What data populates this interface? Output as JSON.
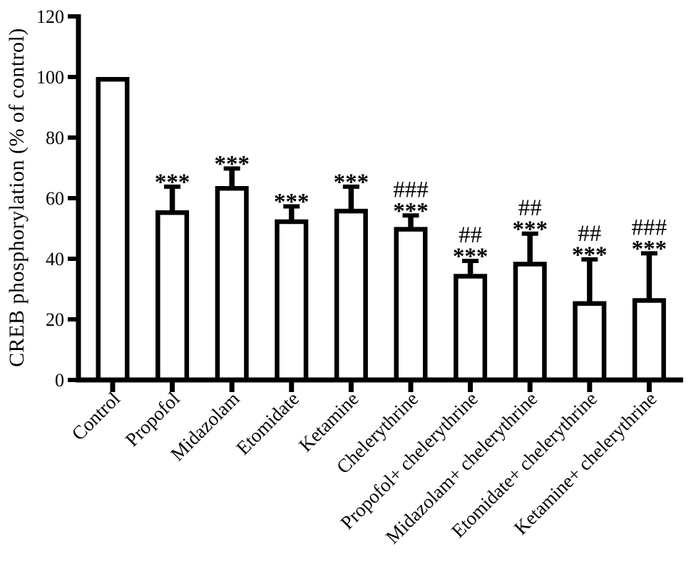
{
  "figure": {
    "background": "#ffffff",
    "ink_color": "#000000"
  },
  "chart_data": {
    "type": "bar",
    "title": "",
    "xlabel": "",
    "ylabel": "CREB phosphorylation (% of control)",
    "ylim": [
      0,
      120
    ],
    "yticks": [
      0,
      20,
      40,
      60,
      80,
      100,
      120
    ],
    "grid": false,
    "legend": null,
    "bar_fill": "#ffffff",
    "bar_stroke": "#000000",
    "categories": [
      "Control",
      "Propofol",
      "Midazolam",
      "Etomidate",
      "Ketamine",
      "Chelerythrine",
      "Propofol+ chelerythrine",
      "Midazolam+ chelerythrine",
      "Etomidate+ chelerythrine",
      "Ketamine+ chelerythrine"
    ],
    "values": [
      100,
      56,
      64,
      53,
      56.5,
      50.5,
      35,
      39,
      26,
      27
    ],
    "errors_sd_upper": [
      0,
      8.5,
      6.5,
      5,
      8,
      4.5,
      5,
      10,
      14.5,
      15.5
    ],
    "significance_labels": [
      [],
      [
        "***"
      ],
      [
        "***"
      ],
      [
        "***"
      ],
      [
        "***"
      ],
      [
        "###",
        "***"
      ],
      [
        "##",
        "***"
      ],
      [
        "##",
        "***"
      ],
      [
        "##",
        "***"
      ],
      [
        "###",
        "***"
      ]
    ]
  }
}
